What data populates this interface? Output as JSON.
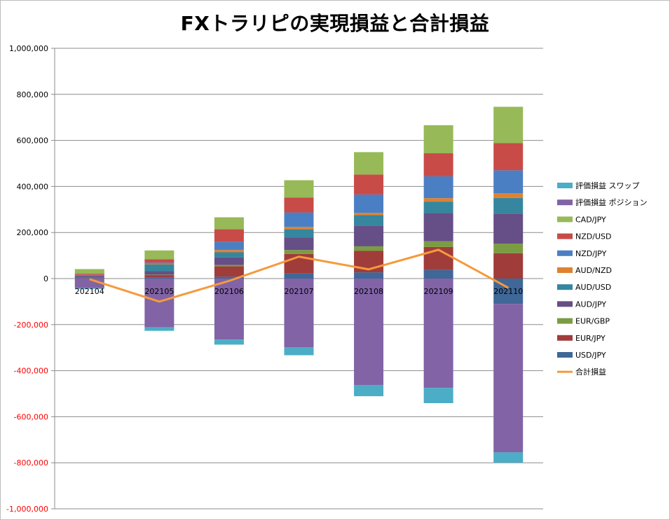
{
  "chart_data": {
    "type": "bar",
    "stacked": true,
    "title": "FXトラリピの実現損益と合計損益",
    "categories": [
      "202104",
      "202105",
      "202106",
      "202107",
      "202108",
      "202109",
      "202110"
    ],
    "ylim": [
      -1000000,
      1000000
    ],
    "yticks": [
      1000000,
      800000,
      600000,
      400000,
      200000,
      0,
      -200000,
      -400000,
      -600000,
      -800000,
      -1000000
    ],
    "ytick_labels": [
      "1,000,000",
      "800,000",
      "600,000",
      "400,000",
      "200,000",
      "0",
      "-200,000",
      "-400,000",
      "-600,000",
      "-800,000",
      "-1,000,000"
    ],
    "negative_tick_color": "#ff0000",
    "grid": true,
    "legend_position": "right",
    "series": [
      {
        "name": "USD/JPY",
        "color": "#3f6797",
        "values": [
          2000,
          5000,
          8000,
          22000,
          27000,
          37000,
          -110000
        ]
      },
      {
        "name": "EUR/JPY",
        "color": "#a03c3a",
        "values": [
          3000,
          10000,
          45000,
          85000,
          93000,
          100000,
          110000
        ]
      },
      {
        "name": "EUR/GBP",
        "color": "#7c9c44",
        "values": [
          1000,
          2000,
          6000,
          17000,
          20000,
          25000,
          42000
        ]
      },
      {
        "name": "AUD/JPY",
        "color": "#664e86",
        "values": [
          5000,
          15000,
          33000,
          55000,
          90000,
          122000,
          130000
        ]
      },
      {
        "name": "AUD/USD",
        "color": "#35869e",
        "values": [
          3000,
          30000,
          22000,
          35000,
          45000,
          50000,
          68000
        ]
      },
      {
        "name": "AUD/NZD",
        "color": "#e0812f",
        "values": [
          0,
          2000,
          10000,
          10000,
          10000,
          15000,
          20000
        ]
      },
      {
        "name": "NZD/JPY",
        "color": "#4b7fc4",
        "values": [
          2000,
          5000,
          35000,
          63000,
          80000,
          95000,
          100000
        ]
      },
      {
        "name": "NZD/USD",
        "color": "#c84b47",
        "values": [
          5000,
          15000,
          55000,
          65000,
          87000,
          100000,
          118000
        ]
      },
      {
        "name": "CAD/JPY",
        "color": "#97b957",
        "values": [
          20000,
          38000,
          52000,
          75000,
          97000,
          122000,
          158000
        ]
      },
      {
        "name": "評価損益 ポジション",
        "color": "#8163a6",
        "values": [
          -42000,
          -212000,
          -265000,
          -298000,
          -463000,
          -475000,
          -645000
        ]
      },
      {
        "name": "評価損益 スワップ",
        "color": "#4badc6",
        "values": [
          -3000,
          -15000,
          -22000,
          -35000,
          -48000,
          -66000,
          -45000
        ]
      }
    ],
    "line": {
      "name": "合計損益",
      "color": "#f59a3c",
      "values": [
        -3000,
        -100000,
        -10000,
        95000,
        40000,
        125000,
        -40000
      ]
    },
    "legend": [
      "評価損益 スワップ",
      "評価損益 ポジション",
      "CAD/JPY",
      "NZD/USD",
      "NZD/JPY",
      "AUD/NZD",
      "AUD/USD",
      "AUD/JPY",
      "EUR/GBP",
      "EUR/JPY",
      "USD/JPY",
      "合計損益"
    ]
  }
}
